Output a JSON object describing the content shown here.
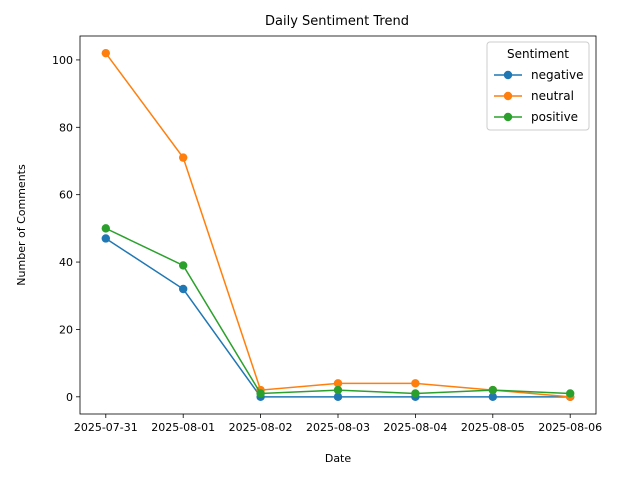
{
  "chart_data": {
    "type": "line",
    "title": "Daily Sentiment Trend",
    "xlabel": "Date",
    "ylabel": "Number of Comments",
    "x": [
      "2025-07-31",
      "2025-08-01",
      "2025-08-02",
      "2025-08-03",
      "2025-08-04",
      "2025-08-05",
      "2025-08-06"
    ],
    "y_ticks": [
      0,
      20,
      40,
      60,
      80,
      100
    ],
    "ylim": [
      -5.1,
      107.1
    ],
    "grid": false,
    "legend": {
      "title": "Sentiment",
      "placement": "top-right"
    },
    "series": [
      {
        "name": "negative",
        "color": "#1f77b4",
        "values": [
          47,
          32,
          0,
          0,
          0,
          0,
          0
        ]
      },
      {
        "name": "neutral",
        "color": "#ff7f0e",
        "values": [
          102,
          71,
          2,
          4,
          4,
          2,
          0
        ]
      },
      {
        "name": "positive",
        "color": "#2ca02c",
        "values": [
          50,
          39,
          1,
          2,
          1,
          2,
          1
        ]
      }
    ]
  }
}
